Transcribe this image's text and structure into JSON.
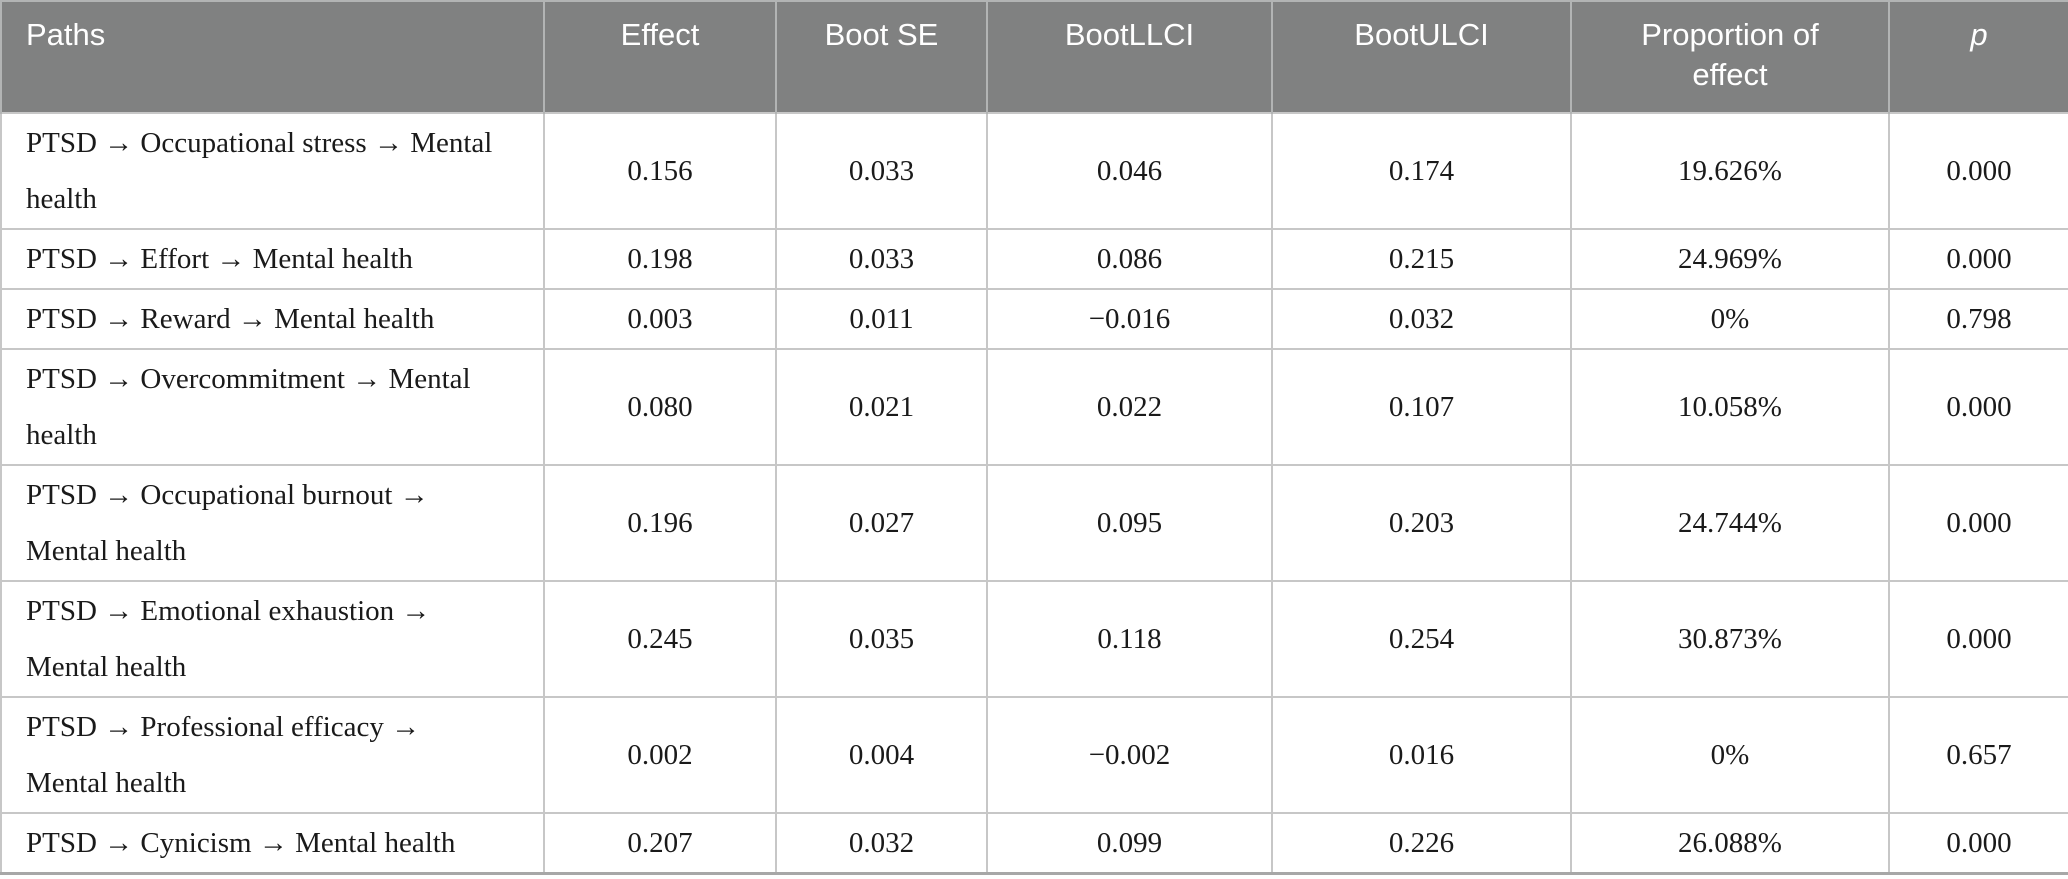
{
  "table": {
    "columns": [
      {
        "key": "path",
        "label": "Paths"
      },
      {
        "key": "effect",
        "label": "Effect"
      },
      {
        "key": "boot_se",
        "label": "Boot SE"
      },
      {
        "key": "boot_llci",
        "label": "BootLLCI"
      },
      {
        "key": "boot_ulci",
        "label": "BootULCI"
      },
      {
        "key": "proportion",
        "label": "Proportion of effect"
      },
      {
        "key": "p",
        "label": "p"
      }
    ],
    "rows": [
      {
        "path": "PTSD → Occupational stress → Mental health",
        "effect": "0.156",
        "boot_se": "0.033",
        "boot_llci": "0.046",
        "boot_ulci": "0.174",
        "proportion": "19.626%",
        "p": "0.000"
      },
      {
        "path": "PTSD → Effort → Mental health",
        "effect": "0.198",
        "boot_se": "0.033",
        "boot_llci": "0.086",
        "boot_ulci": "0.215",
        "proportion": "24.969%",
        "p": "0.000"
      },
      {
        "path": "PTSD → Reward → Mental health",
        "effect": "0.003",
        "boot_se": "0.011",
        "boot_llci": "−0.016",
        "boot_ulci": "0.032",
        "proportion": "0%",
        "p": "0.798"
      },
      {
        "path": "PTSD → Overcommitment → Mental health",
        "effect": "0.080",
        "boot_se": "0.021",
        "boot_llci": "0.022",
        "boot_ulci": "0.107",
        "proportion": "10.058%",
        "p": "0.000"
      },
      {
        "path": "PTSD → Occupational burnout → Mental health",
        "effect": "0.196",
        "boot_se": "0.027",
        "boot_llci": "0.095",
        "boot_ulci": "0.203",
        "proportion": "24.744%",
        "p": "0.000"
      },
      {
        "path": "PTSD → Emotional exhaustion → Mental health",
        "effect": "0.245",
        "boot_se": "0.035",
        "boot_llci": "0.118",
        "boot_ulci": "0.254",
        "proportion": "30.873%",
        "p": "0.000"
      },
      {
        "path": "PTSD → Professional efficacy → Mental health",
        "effect": "0.002",
        "boot_se": "0.004",
        "boot_llci": "−0.002",
        "boot_ulci": "0.016",
        "proportion": "0%",
        "p": "0.657"
      },
      {
        "path": "PTSD → Cynicism → Mental health",
        "effect": "0.207",
        "boot_se": "0.032",
        "boot_llci": "0.099",
        "boot_ulci": "0.226",
        "proportion": "26.088%",
        "p": "0.000"
      }
    ]
  },
  "colors": {
    "header_bg": "#808181",
    "header_text": "#ffffff",
    "body_text": "#1a1a1a",
    "grid_line": "#c7c7c7",
    "header_divider": "#b2b4b4",
    "bottom_border": "#a7a7a7"
  }
}
